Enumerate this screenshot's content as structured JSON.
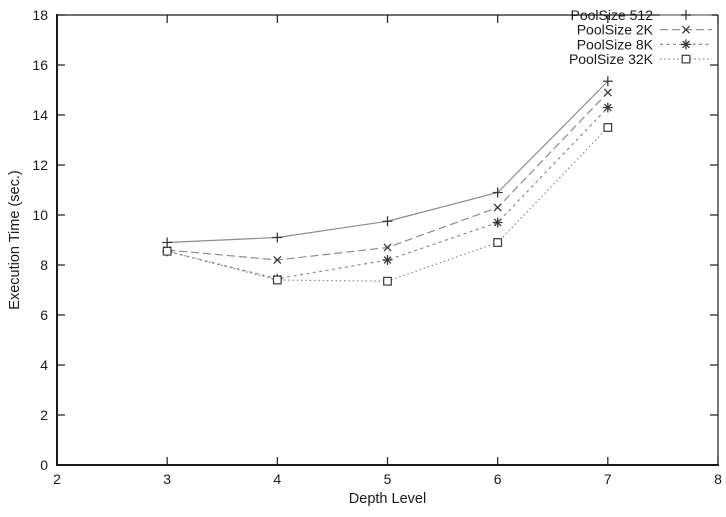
{
  "figure": {
    "background": "#ffffff"
  },
  "chart_data": {
    "type": "line",
    "title": "",
    "xlabel": "Depth Level",
    "ylabel": "Execution Time (sec.)",
    "xlim": [
      2,
      8
    ],
    "ylim": [
      0,
      18
    ],
    "x_ticks": [
      2,
      3,
      4,
      5,
      6,
      7,
      8
    ],
    "y_ticks": [
      0,
      2,
      4,
      6,
      8,
      10,
      12,
      14,
      16,
      18
    ],
    "grid": false,
    "legend_position": "top-right-inside",
    "x": [
      3,
      4,
      5,
      6,
      7
    ],
    "series": [
      {
        "name": "PoolSize 512",
        "values": [
          8.9,
          9.1,
          9.75,
          10.9,
          15.35
        ],
        "line_style": "solid",
        "marker": "plus"
      },
      {
        "name": "PoolSize 2K",
        "values": [
          8.6,
          8.2,
          8.7,
          10.3,
          14.9
        ],
        "line_style": "dashed",
        "marker": "cross"
      },
      {
        "name": "PoolSize 8K",
        "values": [
          8.55,
          7.45,
          8.2,
          9.7,
          14.3
        ],
        "line_style": "short-dash",
        "marker": "asterisk"
      },
      {
        "name": "PoolSize 32K",
        "values": [
          8.55,
          7.4,
          7.35,
          8.9,
          13.5
        ],
        "line_style": "dotted",
        "marker": "square"
      }
    ],
    "colors": {
      "line": "#8c8c8c",
      "marker": "#3a3a3a",
      "text": "#1a1a1a",
      "axis": "#1a1a1a"
    }
  }
}
